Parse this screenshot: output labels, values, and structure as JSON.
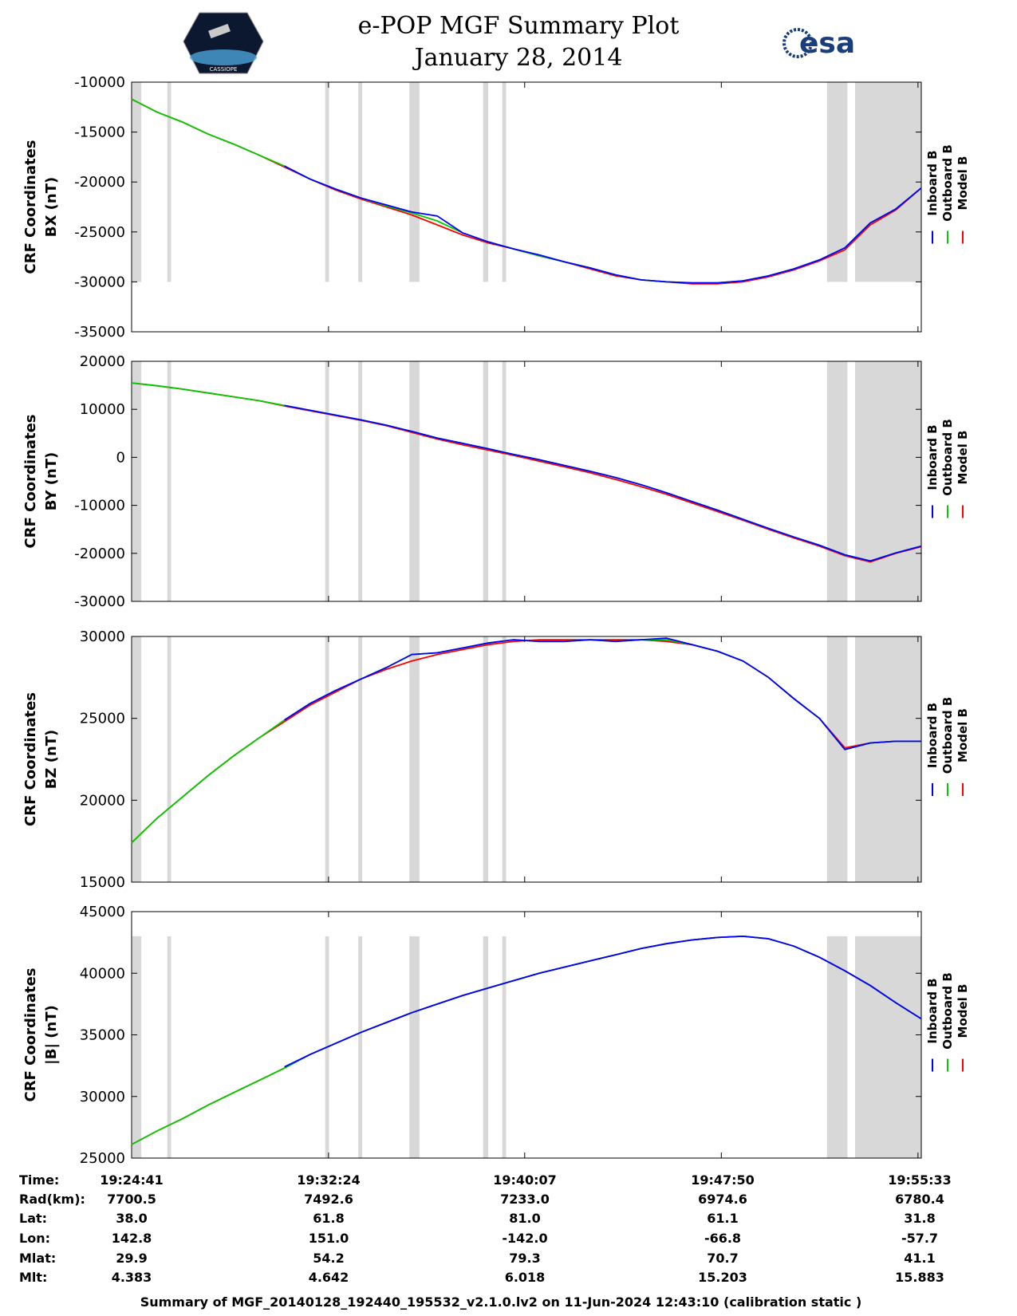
{
  "header": {
    "title_line1": "e-POP MGF Summary Plot",
    "title_line2": "January 28, 2014",
    "logo_left": "CASSIOPE",
    "logo_right": "esa"
  },
  "legend": {
    "inboard": "Inboard B",
    "outboard": "Outboard B",
    "model": "Model B"
  },
  "colors": {
    "inboard": "#0000ff",
    "outboard": "#00cc00",
    "model": "#ff0000",
    "gap": "#d8d8d8"
  },
  "gaps": [
    [
      0.02,
      0.38
    ],
    [
      1.4,
      1.55
    ],
    [
      7.6,
      7.75
    ],
    [
      8.9,
      9.05
    ],
    [
      10.9,
      11.3
    ],
    [
      13.8,
      14.0
    ],
    [
      14.55,
      14.7
    ],
    [
      27.3,
      28.1
    ],
    [
      28.4,
      31.0
    ]
  ],
  "chart_data": [
    {
      "type": "line",
      "id": "bx",
      "ylabel_line1": "CRF Coordinates",
      "ylabel_line2": "BX (nT)",
      "ylim": [
        -35000,
        -10000
      ],
      "yticks": [
        -35000,
        -30000,
        -25000,
        -20000,
        -15000,
        -10000
      ],
      "ytick_labels": [
        "-35000",
        "-30000",
        "-25000",
        "-20000",
        "-15000",
        "-10000"
      ],
      "gap_range": [
        -30000,
        -10000
      ],
      "xlim": [
        0,
        31
      ],
      "xticks": [
        0,
        7.73,
        15.43,
        23.15,
        30.87
      ],
      "x": [
        0,
        1,
        2,
        3,
        4,
        5,
        6,
        7,
        8,
        9,
        10,
        11,
        12,
        13,
        14,
        15,
        16,
        17,
        18,
        19,
        20,
        21,
        22,
        23,
        24,
        25,
        26,
        27,
        28,
        29,
        30,
        31
      ],
      "series": [
        {
          "name": "Model B",
          "values": [
            -11700,
            -13000,
            -14000,
            -15200,
            -16200,
            -17300,
            -18500,
            -19700,
            -20800,
            -21700,
            -22500,
            -23300,
            -24300,
            -25300,
            -26100,
            -26700,
            -27400,
            -28000,
            -28700,
            -29400,
            -29800,
            -30000,
            -30200,
            -30200,
            -30000,
            -29500,
            -28800,
            -27900,
            -26800,
            -24300,
            -22800,
            -20600
          ]
        },
        {
          "name": "Outboard B",
          "values": [
            -11700,
            -13000,
            -14000,
            -15200,
            -16200,
            -17300,
            -18400,
            -19700,
            -20700,
            -21600,
            -22400,
            -23100,
            -23900,
            -25100,
            -26000,
            -26700,
            -27400,
            -28000,
            -28600,
            -29300,
            -29800,
            -30000,
            -30100,
            -30100,
            -29900,
            -29400,
            -28700,
            -27800,
            -26600,
            -24100,
            -22700,
            -20600
          ]
        },
        {
          "name": "Inboard B",
          "values": [
            null,
            null,
            null,
            null,
            null,
            null,
            -18400,
            -19700,
            -20700,
            -21600,
            -22300,
            -23000,
            -23400,
            -25100,
            -26000,
            -26700,
            -27300,
            -28000,
            -28600,
            -29300,
            -29800,
            -30000,
            -30100,
            -30100,
            -29900,
            -29400,
            -28700,
            -27800,
            -26600,
            -24100,
            -22700,
            -20600
          ]
        }
      ]
    },
    {
      "type": "line",
      "id": "by",
      "ylabel_line1": "CRF Coordinates",
      "ylabel_line2": "BY (nT)",
      "ylim": [
        -30000,
        20000
      ],
      "yticks": [
        -30000,
        -20000,
        -10000,
        0,
        10000,
        20000
      ],
      "ytick_labels": [
        "-30000",
        "-20000",
        "-10000",
        "0",
        "10000",
        "20000"
      ],
      "gap_range": [
        -30000,
        20000
      ],
      "xlim": [
        0,
        31
      ],
      "xticks": [
        0,
        7.73,
        15.43,
        23.15,
        30.87
      ],
      "x": [
        0,
        1,
        2,
        3,
        4,
        5,
        6,
        7,
        8,
        9,
        10,
        11,
        12,
        13,
        14,
        15,
        16,
        17,
        18,
        19,
        20,
        21,
        22,
        23,
        24,
        25,
        26,
        27,
        28,
        29,
        30,
        31
      ],
      "series": [
        {
          "name": "Model B",
          "values": [
            15500,
            14900,
            14200,
            13400,
            12600,
            11800,
            10700,
            9700,
            8700,
            7700,
            6600,
            5200,
            3800,
            2600,
            1500,
            400,
            -800,
            -2000,
            -3200,
            -4600,
            -6100,
            -7700,
            -9500,
            -11300,
            -13100,
            -15000,
            -16800,
            -18500,
            -20500,
            -21800,
            -20000,
            -18600
          ]
        },
        {
          "name": "Outboard B",
          "values": [
            15500,
            14900,
            14200,
            13400,
            12600,
            11800,
            10800,
            9800,
            8800,
            7800,
            6700,
            5400,
            4000,
            2900,
            1800,
            600,
            -500,
            -1700,
            -2900,
            -4200,
            -5700,
            -7400,
            -9200,
            -11000,
            -12900,
            -14800,
            -16600,
            -18300,
            -20300,
            -21600,
            -19900,
            -18500
          ]
        },
        {
          "name": "Inboard B",
          "values": [
            null,
            null,
            null,
            null,
            null,
            null,
            10800,
            9800,
            8800,
            7800,
            6700,
            5400,
            4000,
            2900,
            1800,
            600,
            -500,
            -1700,
            -2900,
            -4200,
            -5700,
            -7400,
            -9200,
            -11000,
            -12900,
            -14800,
            -16600,
            -18300,
            -20300,
            -21600,
            -19900,
            -18500
          ]
        }
      ]
    },
    {
      "type": "line",
      "id": "bz",
      "ylabel_line1": "CRF Coordinates",
      "ylabel_line2": "BZ (nT)",
      "ylim": [
        15000,
        30000
      ],
      "yticks": [
        15000,
        20000,
        25000,
        30000
      ],
      "ytick_labels": [
        "15000",
        "20000",
        "25000",
        "30000"
      ],
      "gap_range": [
        15000,
        30000
      ],
      "xlim": [
        0,
        31
      ],
      "xticks": [
        0,
        7.73,
        15.43,
        23.15,
        30.87
      ],
      "x": [
        0,
        1,
        2,
        3,
        4,
        5,
        6,
        7,
        8,
        9,
        10,
        11,
        12,
        13,
        14,
        15,
        16,
        17,
        18,
        19,
        20,
        21,
        22,
        23,
        24,
        25,
        26,
        27,
        28,
        29,
        30,
        31
      ],
      "series": [
        {
          "name": "Model B",
          "values": [
            17400,
            18900,
            20200,
            21500,
            22700,
            23800,
            24800,
            25800,
            26600,
            27400,
            28000,
            28500,
            28900,
            29200,
            29500,
            29700,
            29800,
            29800,
            29800,
            29800,
            29800,
            29700,
            29500,
            29100,
            28500,
            27500,
            26200,
            25000,
            23200,
            23500,
            23600,
            23600
          ]
        },
        {
          "name": "Outboard B",
          "values": [
            17400,
            18900,
            20200,
            21500,
            22700,
            23800,
            24900,
            25900,
            26700,
            27400,
            28100,
            28900,
            29000,
            29300,
            29600,
            29800,
            29700,
            29700,
            29800,
            29700,
            29800,
            29800,
            29500,
            29100,
            28500,
            27500,
            26200,
            25000,
            23100,
            23500,
            23600,
            23600
          ]
        },
        {
          "name": "Inboard B",
          "values": [
            null,
            null,
            null,
            null,
            null,
            null,
            24900,
            25900,
            26700,
            27400,
            28100,
            28900,
            29000,
            29300,
            29600,
            29800,
            29700,
            29700,
            29800,
            29700,
            29800,
            29900,
            29500,
            29100,
            28500,
            27500,
            26200,
            25000,
            23100,
            23500,
            23600,
            23600
          ]
        }
      ]
    },
    {
      "type": "line",
      "id": "bmag",
      "ylabel_line1": "CRF Coordinates",
      "ylabel_line2": "|B| (nT)",
      "ylim": [
        25000,
        45000
      ],
      "yticks": [
        25000,
        30000,
        35000,
        40000,
        45000
      ],
      "ytick_labels": [
        "25000",
        "30000",
        "35000",
        "40000",
        "45000"
      ],
      "gap_range": [
        25000,
        43000
      ],
      "xlim": [
        0,
        31
      ],
      "xticks": [
        0,
        7.73,
        15.43,
        23.15,
        30.87
      ],
      "x": [
        0,
        1,
        2,
        3,
        4,
        5,
        6,
        7,
        8,
        9,
        10,
        11,
        12,
        13,
        14,
        15,
        16,
        17,
        18,
        19,
        20,
        21,
        22,
        23,
        24,
        25,
        26,
        27,
        28,
        29,
        30,
        31
      ],
      "series": [
        {
          "name": "Model B",
          "values": [
            26100,
            27200,
            28200,
            29300,
            30300,
            31300,
            32300,
            33400,
            34300,
            35200,
            36000,
            36800,
            37500,
            38200,
            38800,
            39400,
            40000,
            40500,
            41000,
            41500,
            42000,
            42400,
            42700,
            42900,
            43000,
            42800,
            42200,
            41300,
            40200,
            39000,
            37600,
            36300
          ]
        },
        {
          "name": "Outboard B",
          "values": [
            26100,
            27200,
            28200,
            29300,
            30300,
            31300,
            32300,
            33400,
            34300,
            35200,
            36000,
            36800,
            37500,
            38200,
            38800,
            39400,
            40000,
            40500,
            41000,
            41500,
            42000,
            42400,
            42700,
            42900,
            43000,
            42800,
            42200,
            41300,
            40200,
            39000,
            37600,
            36300
          ]
        },
        {
          "name": "Inboard B",
          "values": [
            null,
            null,
            null,
            null,
            null,
            null,
            32400,
            33400,
            34300,
            35200,
            36000,
            36800,
            37500,
            38200,
            38800,
            39400,
            40000,
            40500,
            41000,
            41500,
            42000,
            42400,
            42700,
            42900,
            43000,
            42800,
            42200,
            41300,
            40200,
            39000,
            37600,
            36300
          ]
        }
      ]
    }
  ],
  "table": {
    "labels": [
      "Time:",
      "Rad(km):",
      "Lat:",
      "Lon:",
      "Mlat:",
      "Mlt:"
    ],
    "columns": [
      [
        "19:24:41",
        "7700.5",
        "38.0",
        "142.8",
        "29.9",
        "4.383"
      ],
      [
        "19:32:24",
        "7492.6",
        "61.8",
        "151.0",
        "54.2",
        "4.642"
      ],
      [
        "19:40:07",
        "7233.0",
        "81.0",
        "-142.0",
        "79.3",
        "6.018"
      ],
      [
        "19:47:50",
        "6974.6",
        "61.1",
        "-66.8",
        "70.7",
        "15.203"
      ],
      [
        "19:55:33",
        "6780.4",
        "31.8",
        "-57.7",
        "41.1",
        "15.883"
      ]
    ]
  },
  "footer": "Summary of MGF_20140128_192440_195532_v2.1.0.lv2 on 11-Jun-2024 12:43:10 (calibration static )"
}
